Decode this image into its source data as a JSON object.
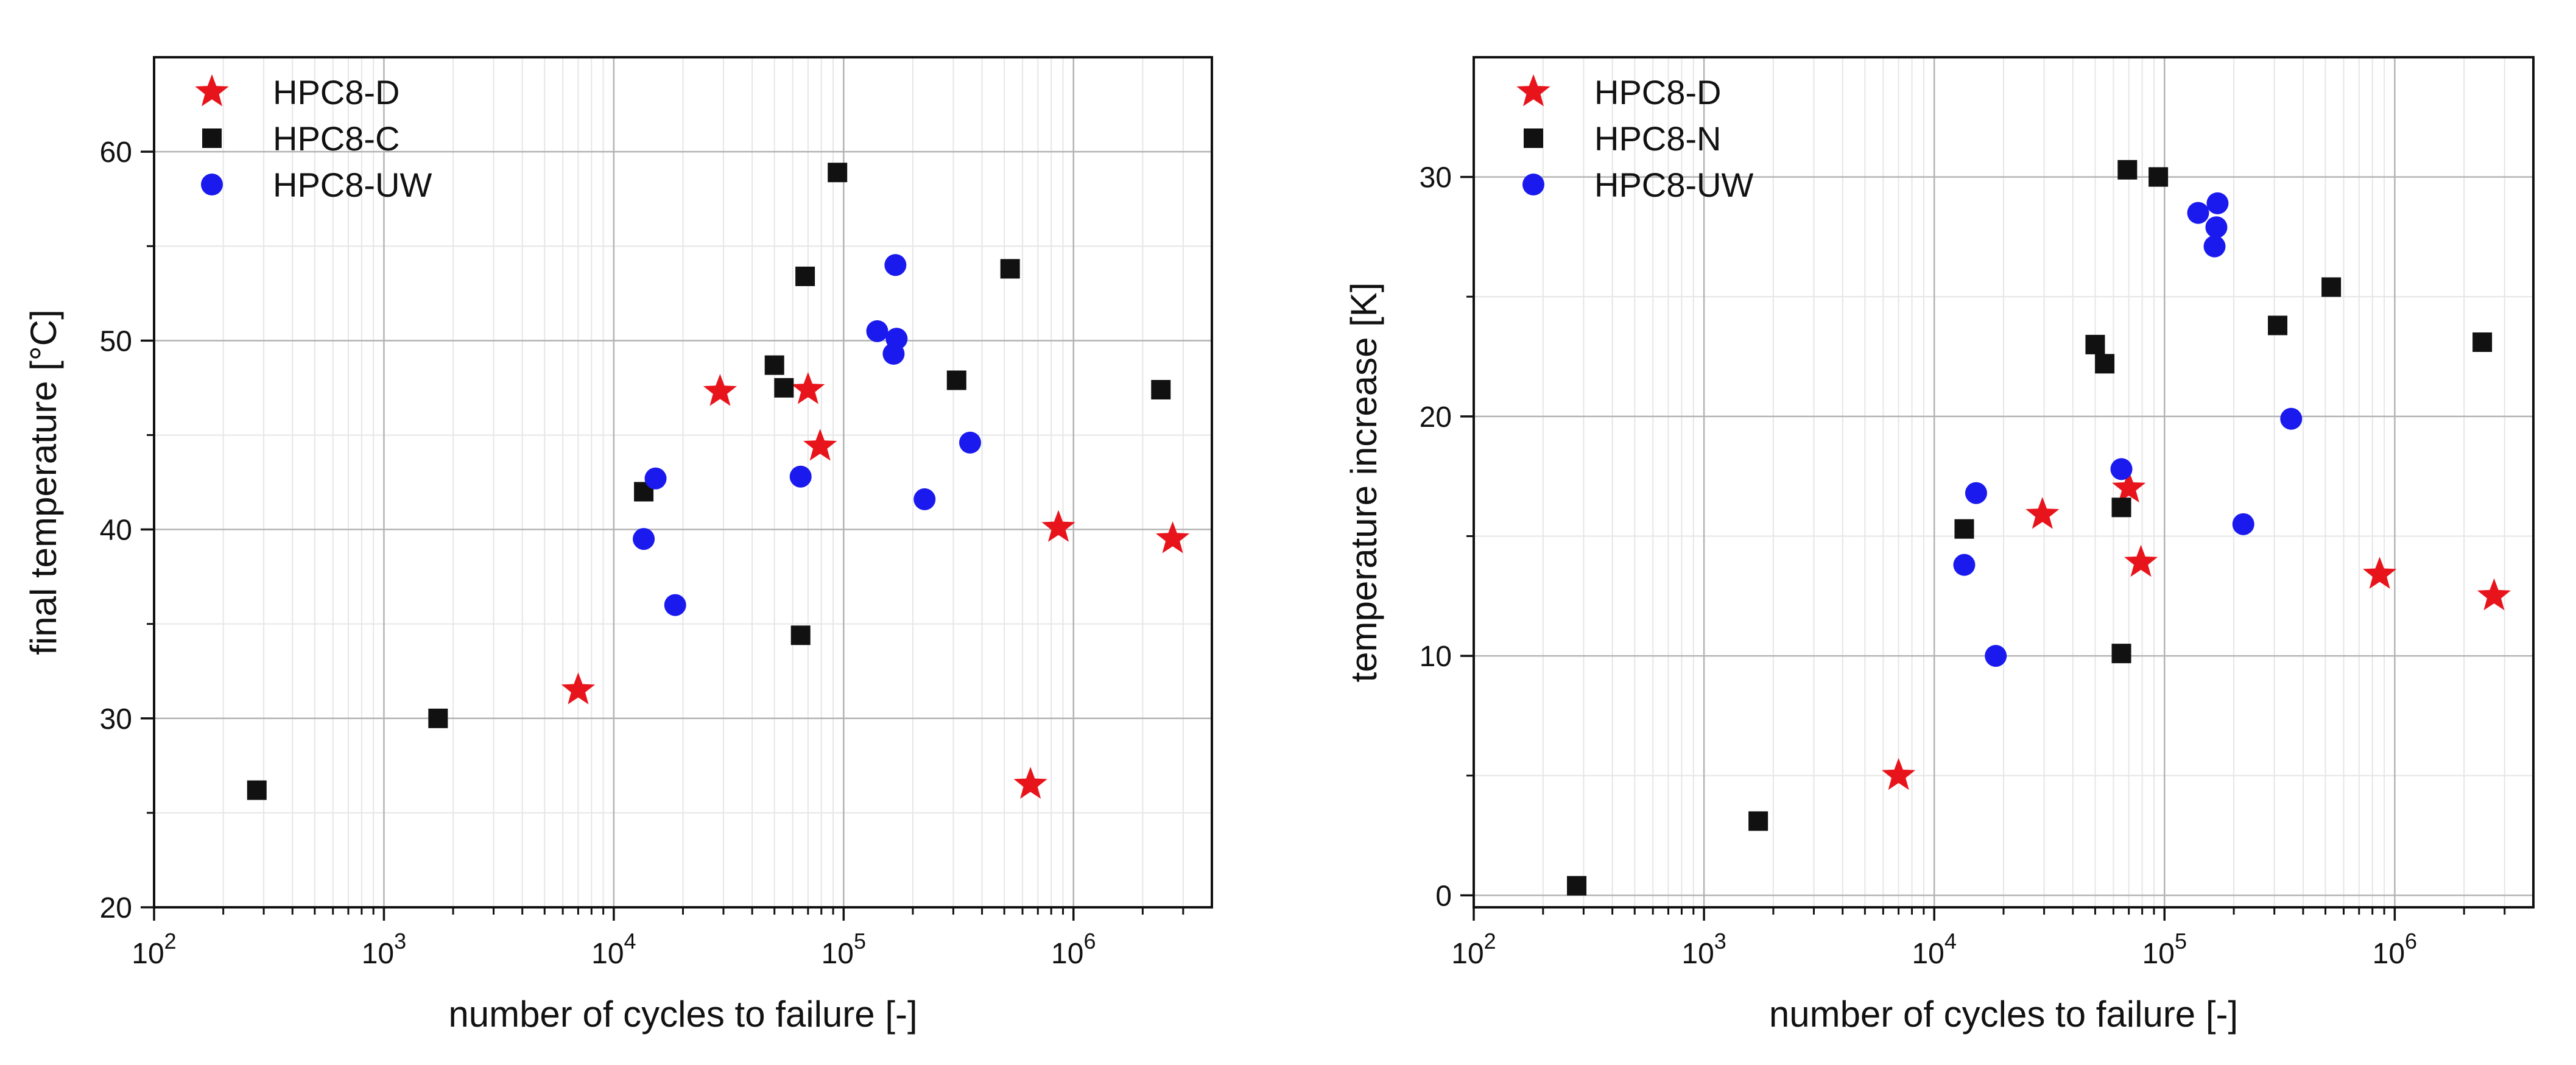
{
  "figure": {
    "colors": {
      "red": "#e8141b",
      "black": "#111111",
      "blue": "#1a1aee",
      "grid_major": "#b3b3b3",
      "grid_minor": "#e6e6e6"
    }
  },
  "chart_data": [
    {
      "type": "scatter",
      "title": "",
      "xlabel": "number of cycles to failure [-]",
      "ylabel": "final temperature [°C]",
      "xscale": "log",
      "xlim": [
        100,
        4000000
      ],
      "ylim": [
        20,
        65
      ],
      "xticks": [
        {
          "value": 100,
          "base": "10",
          "exp": "2"
        },
        {
          "value": 1000,
          "base": "10",
          "exp": "3"
        },
        {
          "value": 10000,
          "base": "10",
          "exp": "4"
        },
        {
          "value": 100000,
          "base": "10",
          "exp": "5"
        },
        {
          "value": 1000000,
          "base": "10",
          "exp": "6"
        }
      ],
      "yticks": [
        20,
        30,
        40,
        50,
        60
      ],
      "grid": true,
      "legend_position": "top-left",
      "series": [
        {
          "name": "HPC8-D",
          "marker": "star",
          "color": "#e8141b",
          "points": [
            [
              7000,
              31.5
            ],
            [
              29000,
              47.3
            ],
            [
              70000,
              47.4
            ],
            [
              79000,
              44.4
            ],
            [
              650000,
              26.5
            ],
            [
              860000,
              40.1
            ],
            [
              2700000,
              39.5
            ]
          ]
        },
        {
          "name": "HPC8-C",
          "marker": "square",
          "color": "#111111",
          "points": [
            [
              280,
              26.2
            ],
            [
              1720,
              30.0
            ],
            [
              13500,
              42.0
            ],
            [
              50000,
              48.7
            ],
            [
              55000,
              47.5
            ],
            [
              65000,
              34.4
            ],
            [
              68000,
              53.4
            ],
            [
              94000,
              58.9
            ],
            [
              310000,
              47.9
            ],
            [
              530000,
              53.8
            ],
            [
              2400000,
              47.4
            ]
          ]
        },
        {
          "name": "HPC8-UW",
          "marker": "circle",
          "color": "#1a1aee",
          "points": [
            [
              13500,
              39.5
            ],
            [
              15200,
              42.7
            ],
            [
              18500,
              36.0
            ],
            [
              65000,
              42.8
            ],
            [
              140000,
              50.5
            ],
            [
              165000,
              49.3
            ],
            [
              170000,
              50.1
            ],
            [
              168000,
              54.0
            ],
            [
              225000,
              41.6
            ],
            [
              355000,
              44.6
            ]
          ]
        }
      ]
    },
    {
      "type": "scatter",
      "title": "",
      "xlabel": "number of cycles to failure [-]",
      "ylabel": "temperature increase [K]",
      "xscale": "log",
      "xlim": [
        100,
        4000000
      ],
      "ylim": [
        -0.5,
        35
      ],
      "xticks": [
        {
          "value": 100,
          "base": "10",
          "exp": "2"
        },
        {
          "value": 1000,
          "base": "10",
          "exp": "3"
        },
        {
          "value": 10000,
          "base": "10",
          "exp": "4"
        },
        {
          "value": 100000,
          "base": "10",
          "exp": "5"
        },
        {
          "value": 1000000,
          "base": "10",
          "exp": "6"
        }
      ],
      "yticks": [
        0,
        10,
        20,
        30
      ],
      "grid": true,
      "legend_position": "top-left",
      "series": [
        {
          "name": "HPC8-D",
          "marker": "star",
          "color": "#e8141b",
          "points": [
            [
              7000,
              5.0
            ],
            [
              29500,
              15.9
            ],
            [
              70000,
              17.0
            ],
            [
              79000,
              13.9
            ],
            [
              860000,
              13.4
            ],
            [
              2700000,
              12.5
            ]
          ]
        },
        {
          "name": "HPC8-N",
          "marker": "square",
          "color": "#111111",
          "points": [
            [
              280,
              0.4
            ],
            [
              1720,
              3.1
            ],
            [
              13500,
              15.3
            ],
            [
              50000,
              23.0
            ],
            [
              55000,
              22.2
            ],
            [
              65000,
              16.2
            ],
            [
              65000,
              10.1
            ],
            [
              69000,
              30.3
            ],
            [
              94000,
              30.0
            ],
            [
              310000,
              23.8
            ],
            [
              530000,
              25.4
            ],
            [
              2400000,
              23.1
            ]
          ]
        },
        {
          "name": "HPC8-UW",
          "marker": "circle",
          "color": "#1a1aee",
          "points": [
            [
              13500,
              13.8
            ],
            [
              15200,
              16.8
            ],
            [
              18500,
              10.0
            ],
            [
              65000,
              17.8
            ],
            [
              140000,
              28.5
            ],
            [
              165000,
              27.1
            ],
            [
              168000,
              27.9
            ],
            [
              170000,
              28.9
            ],
            [
              220000,
              15.5
            ],
            [
              355000,
              19.9
            ]
          ]
        }
      ]
    }
  ]
}
